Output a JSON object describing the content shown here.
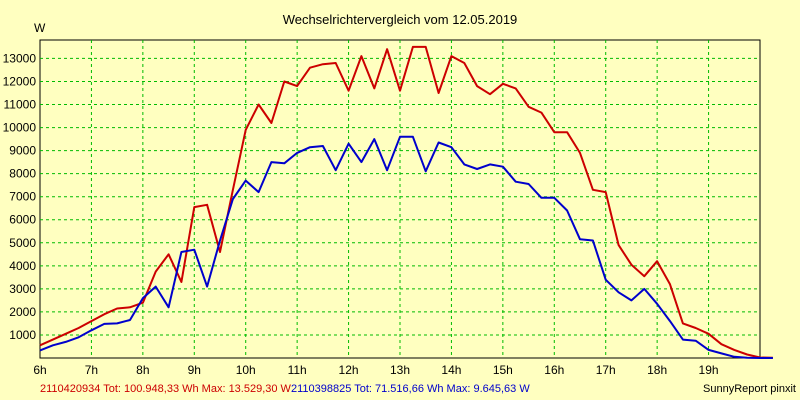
{
  "chart_data": {
    "type": "line",
    "title": "Wechselrichtervergleich vom 12.05.2019",
    "ylabel": "W",
    "xlabel": "",
    "ylim": [
      0,
      13800
    ],
    "xlim": [
      6,
      20
    ],
    "grid": true,
    "x_tick_labels": [
      "6h",
      "7h",
      "8h",
      "9h",
      "10h",
      "11h",
      "12h",
      "13h",
      "14h",
      "15h",
      "16h",
      "17h",
      "18h",
      "19h"
    ],
    "y_tick_labels": [
      "1000",
      "2000",
      "3000",
      "4000",
      "5000",
      "6000",
      "7000",
      "8000",
      "9000",
      "10000",
      "11000",
      "12000",
      "13000"
    ],
    "y_tick_values": [
      1000,
      2000,
      3000,
      4000,
      5000,
      6000,
      7000,
      8000,
      9000,
      10000,
      11000,
      12000,
      13000
    ],
    "x_step_hours": 0.25,
    "series": [
      {
        "name": "2110420934",
        "color": "#CC0000",
        "summary": "2110420934 Tot: 100.948,33 Wh Max: 13.529,30 W",
        "values": [
          550,
          800,
          1050,
          1300,
          1600,
          1900,
          2150,
          2200,
          2400,
          3750,
          4500,
          3300,
          6550,
          6650,
          4600,
          7300,
          9900,
          11000,
          10200,
          12000,
          11800,
          12600,
          12750,
          12800,
          11600,
          13100,
          11700,
          13400,
          11600,
          13500,
          13500,
          11500,
          13100,
          12800,
          11800,
          11450,
          11900,
          11700,
          10900,
          10650,
          9800,
          9800,
          8900,
          7300,
          7200,
          4900,
          4050,
          3550,
          4200,
          3200,
          1500,
          1300,
          1050,
          600,
          350,
          150,
          20,
          10
        ]
      },
      {
        "name": "2110398825",
        "color": "#0000CC",
        "summary": "2110398825 Tot: 71.516,66 Wh Max: 9.645,63 W",
        "values": [
          330,
          550,
          700,
          900,
          1200,
          1480,
          1500,
          1650,
          2600,
          3100,
          2200,
          4600,
          4700,
          3100,
          5100,
          6900,
          7700,
          7200,
          8500,
          8450,
          8900,
          9150,
          9200,
          8150,
          9300,
          8500,
          9500,
          8150,
          9600,
          9600,
          8100,
          9350,
          9150,
          8400,
          8200,
          8400,
          8300,
          7650,
          7550,
          6950,
          6950,
          6400,
          5150,
          5100,
          3400,
          2850,
          2500,
          3000,
          2350,
          1600,
          800,
          750,
          350,
          200,
          50,
          10,
          0,
          0
        ]
      }
    ]
  },
  "footer": {
    "source": "SunnyReport pinxit"
  }
}
